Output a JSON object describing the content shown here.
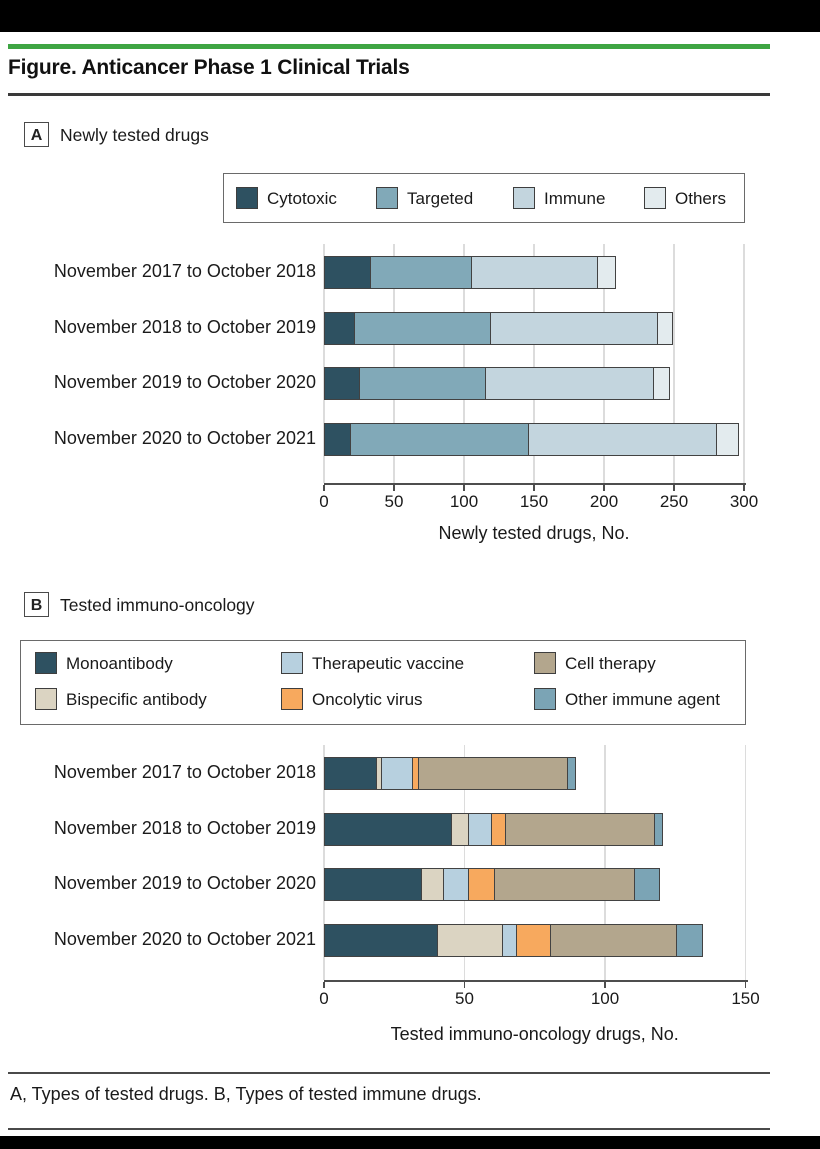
{
  "header": {
    "title": "Figure. Anticancer Phase 1 Clinical Trials"
  },
  "panels": [
    {
      "letter": "A",
      "heading": "Newly tested drugs"
    },
    {
      "letter": "B",
      "heading": "Tested immuno-oncology"
    }
  ],
  "footer": {
    "caption": "A, Types of tested drugs. B, Types of tested immune drugs."
  },
  "theme": {
    "accent_green": "#3EA543",
    "axis_color": "#4d4d4d",
    "grid_color": "#dcdcdc",
    "segment_border": "#424242"
  },
  "chart_data": [
    {
      "type": "bar",
      "orientation": "horizontal",
      "stacked": true,
      "title": "Newly tested drugs",
      "xlabel": "Newly tested drugs, No.",
      "xlim": [
        0,
        300
      ],
      "xticks": [
        0,
        50,
        100,
        150,
        200,
        250,
        300
      ],
      "grid": true,
      "legend_position": "top",
      "categories": [
        "November 2017 to October 2018",
        "November 2018 to October 2019",
        "November 2019 to October 2020",
        "November 2020 to October 2021"
      ],
      "series": [
        {
          "name": "Cytotoxic",
          "color": "#2E5161",
          "values": [
            32,
            21,
            24,
            18
          ]
        },
        {
          "name": "Targeted",
          "color": "#81A9B8",
          "values": [
            72,
            97,
            90,
            127
          ]
        },
        {
          "name": "Immune",
          "color": "#C3D5DE",
          "values": [
            90,
            119,
            120,
            134
          ]
        },
        {
          "name": "Others",
          "color": "#E3EBEE",
          "values": [
            13,
            11,
            12,
            16
          ]
        }
      ],
      "totals": [
        207,
        248,
        246,
        295
      ]
    },
    {
      "type": "bar",
      "orientation": "horizontal",
      "stacked": true,
      "title": "Tested immuno-oncology",
      "xlabel": "Tested immuno-oncology drugs, No.",
      "xlim": [
        0,
        150
      ],
      "xticks": [
        0,
        50,
        100,
        150
      ],
      "grid": true,
      "legend_position": "top",
      "categories": [
        "November 2017 to October 2018",
        "November 2018 to October 2019",
        "November 2019 to October 2020",
        "November 2020 to October 2021"
      ],
      "series": [
        {
          "name": "Monoantibody",
          "color": "#2E5161",
          "values": [
            18,
            45,
            34,
            40
          ]
        },
        {
          "name": "Bispecific antibody",
          "color": "#DBD4C2",
          "values": [
            2,
            6,
            8,
            23
          ]
        },
        {
          "name": "Therapeutic vaccine",
          "color": "#B7D0DF",
          "values": [
            11,
            8,
            9,
            5
          ]
        },
        {
          "name": "Oncolytic virus",
          "color": "#F7A95E",
          "values": [
            2,
            5,
            9,
            12
          ]
        },
        {
          "name": "Cell therapy",
          "color": "#B3A68D",
          "values": [
            53,
            53,
            50,
            45
          ]
        },
        {
          "name": "Other immune agent",
          "color": "#7BA4B5",
          "values": [
            3,
            3,
            9,
            9
          ]
        }
      ],
      "totals": [
        89,
        120,
        119,
        134
      ]
    }
  ]
}
